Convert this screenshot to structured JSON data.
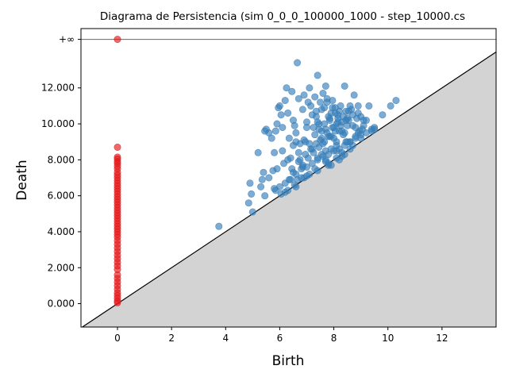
{
  "chart_data": {
    "type": "scatter",
    "title": "Diagrama de Persistencia (sim 0_0_0_100000_1000 - step_10000.cs",
    "xlabel": "Birth",
    "ylabel": "Death",
    "xlim": [
      -1.35,
      14.0
    ],
    "ylim": [
      -1.3,
      14.0
    ],
    "x_ticks": [
      0,
      2,
      4,
      6,
      8,
      10,
      12
    ],
    "x_tick_labels": [
      "0",
      "2",
      "4",
      "6",
      "8",
      "10",
      "12"
    ],
    "y_ticks": [
      0,
      2,
      4,
      6,
      8,
      10,
      12
    ],
    "y_tick_labels": [
      "0.000",
      "2.000",
      "4.000",
      "6.000",
      "8.000",
      "10.000",
      "12.000"
    ],
    "infinity_level": 14.7,
    "infinity_label": "+∞",
    "diagonal_fill_color": "#d3d3d3",
    "grid": false,
    "legend": "none",
    "series": [
      {
        "color": "#e41a1c",
        "x": [
          0,
          0,
          0,
          0,
          0,
          0,
          0,
          0,
          0,
          0,
          0,
          0,
          0,
          0,
          0,
          0,
          0,
          0,
          0,
          0,
          0,
          0,
          0,
          0,
          0,
          0,
          0,
          0,
          0,
          0,
          0,
          0,
          0,
          0,
          0,
          0,
          0,
          0,
          0,
          0,
          0,
          0,
          0,
          0,
          0,
          0,
          0,
          0,
          0,
          0,
          0,
          0
        ],
        "y": [
          14.7,
          8.7,
          8.15,
          8.05,
          7.9,
          7.8,
          7.65,
          7.5,
          7.3,
          7.15,
          7.0,
          6.85,
          6.7,
          6.55,
          6.4,
          6.25,
          6.1,
          5.95,
          5.8,
          5.65,
          5.5,
          5.35,
          5.2,
          5.05,
          4.9,
          4.75,
          4.6,
          4.45,
          4.3,
          4.15,
          4.0,
          3.85,
          3.7,
          3.5,
          3.3,
          3.1,
          2.9,
          2.7,
          2.5,
          2.3,
          2.1,
          1.9,
          1.6,
          1.4,
          1.2,
          1.0,
          0.8,
          0.6,
          0.45,
          0.3,
          0.15,
          0.05
        ]
      },
      {
        "color": "#377eb8",
        "x": [
          3.75,
          4.85,
          4.9,
          4.95,
          5.0,
          5.2,
          5.35,
          5.4,
          5.45,
          5.5,
          5.6,
          5.7,
          5.75,
          5.8,
          5.85,
          5.9,
          5.95,
          6.0,
          6.05,
          6.1,
          6.15,
          6.2,
          6.25,
          6.3,
          6.35,
          6.4,
          6.45,
          6.5,
          6.55,
          6.6,
          6.65,
          6.7,
          6.75,
          6.8,
          6.85,
          6.9,
          6.95,
          7.0,
          7.05,
          7.1,
          7.15,
          7.2,
          7.25,
          7.3,
          7.35,
          7.4,
          7.45,
          7.5,
          7.55,
          7.6,
          7.65,
          7.7,
          7.75,
          7.8,
          7.85,
          7.9,
          7.95,
          8.0,
          8.05,
          8.1,
          8.15,
          8.2,
          8.25,
          8.3,
          8.35,
          8.4,
          8.45,
          8.5,
          8.55,
          8.6,
          8.65,
          8.7,
          8.75,
          8.8,
          8.85,
          8.9,
          8.95,
          9.0,
          9.1,
          9.2,
          9.3,
          9.4,
          9.5,
          9.8,
          10.1,
          10.3,
          5.8,
          6.0,
          6.2,
          6.4,
          6.6,
          6.8,
          7.0,
          7.2,
          7.4,
          7.6,
          7.8,
          8.0,
          8.2,
          8.4,
          8.6,
          8.8,
          9.0,
          9.2,
          9.4,
          5.6,
          5.9,
          6.3,
          6.7,
          7.1,
          7.5,
          7.9,
          8.3,
          8.7,
          9.1,
          9.5,
          6.1,
          6.5,
          6.9,
          7.3,
          7.7,
          8.1,
          8.5,
          8.9,
          6.6,
          7.0,
          7.4,
          7.8,
          8.2,
          8.6,
          7.2,
          7.6,
          8.0,
          8.4,
          7.35,
          7.55,
          7.75,
          7.95,
          8.15,
          7.45,
          7.65,
          7.85,
          8.05,
          6.85,
          7.05,
          7.25,
          7.45,
          7.65,
          7.85,
          8.05,
          8.25,
          8.45,
          6.75,
          6.95,
          7.15,
          7.35,
          7.55,
          7.75,
          7.95,
          8.15,
          8.35,
          8.55,
          6.3,
          6.55,
          6.9,
          7.3,
          7.7,
          8.1,
          8.5,
          8.9,
          6.5,
          6.7,
          7.9,
          8.1,
          8.3,
          7.7,
          7.8,
          8.2,
          8.4,
          8.6,
          8.7,
          9.0,
          7.0,
          7.4,
          6.2,
          6.6,
          6.65,
          7.1,
          7.8,
          8.3,
          5.3,
          5.45,
          5.85,
          6.05,
          6.35,
          6.45,
          6.85,
          7.4,
          7.55,
          7.7,
          7.9,
          8.1,
          8.45,
          8.8,
          9.05
        ],
        "y": [
          4.3,
          5.6,
          6.7,
          6.1,
          5.1,
          8.4,
          6.9,
          7.3,
          9.6,
          9.7,
          9.5,
          9.2,
          7.4,
          8.4,
          9.6,
          10.0,
          10.9,
          11.0,
          10.5,
          9.8,
          7.8,
          11.3,
          12.0,
          10.6,
          9.2,
          8.1,
          11.8,
          10.2,
          9.9,
          9.0,
          13.4,
          11.4,
          8.9,
          7.0,
          10.8,
          11.6,
          9.0,
          10.1,
          11.2,
          12.0,
          11.0,
          10.5,
          9.8,
          11.5,
          10.7,
          12.7,
          10.0,
          11.2,
          9.6,
          11.7,
          10.9,
          12.1,
          11.4,
          9.3,
          10.2,
          10.6,
          11.3,
          9.8,
          10.9,
          9.0,
          10.3,
          9.6,
          11.0,
          10.1,
          9.4,
          12.1,
          10.7,
          9.9,
          10.2,
          9.0,
          10.8,
          10.5,
          11.6,
          9.8,
          10.3,
          11.0,
          9.6,
          10.4,
          9.9,
          10.2,
          11.0,
          9.6,
          9.7,
          10.5,
          11.0,
          11.3,
          6.4,
          6.5,
          6.7,
          6.9,
          7.2,
          7.5,
          7.6,
          7.8,
          8.1,
          8.2,
          8.3,
          8.5,
          8.6,
          8.8,
          9.0,
          9.2,
          9.4,
          9.5,
          9.7,
          7.0,
          7.5,
          8.0,
          8.4,
          8.9,
          9.1,
          9.3,
          9.6,
          9.9,
          10.2,
          9.8,
          8.5,
          8.8,
          9.1,
          9.4,
          9.7,
          10.0,
          10.3,
          10.6,
          9.5,
          9.8,
          10.1,
          10.4,
          10.7,
          11.0,
          8.6,
          8.9,
          9.2,
          9.5,
          10.4,
          10.8,
          11.2,
          10.9,
          10.5,
          9.7,
          10.0,
          10.3,
          10.6,
          7.7,
          8.1,
          8.4,
          8.7,
          9.0,
          9.3,
          9.6,
          9.9,
          10.2,
          8.0,
          8.3,
          8.6,
          8.9,
          9.2,
          9.5,
          9.8,
          10.1,
          10.4,
          10.7,
          6.3,
          6.6,
          7.0,
          7.5,
          8.0,
          8.5,
          9.0,
          9.5,
          7.3,
          7.9,
          7.7,
          8.1,
          8.4,
          7.9,
          7.7,
          8.0,
          8.3,
          8.6,
          8.8,
          9.2,
          7.1,
          7.4,
          6.2,
          6.5,
          6.9,
          7.2,
          7.8,
          8.2,
          6.5,
          6.0,
          6.3,
          6.1,
          6.9,
          7.5,
          7.6,
          8.0,
          8.3,
          8.5,
          8.6,
          8.8,
          9.0,
          9.3,
          9.7
        ]
      }
    ]
  }
}
